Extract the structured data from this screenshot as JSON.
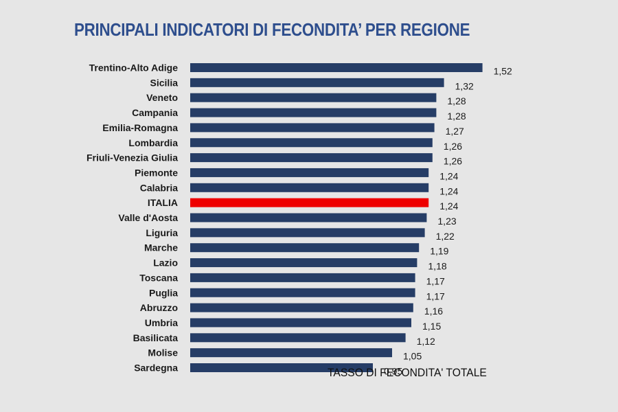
{
  "title": "PRINCIPALI INDICATORI DI FECONDITA’ PER REGIONE",
  "chart_data": {
    "type": "bar",
    "orientation": "horizontal",
    "title": "PRINCIPALI INDICATORI DI FECONDITA’ PER REGIONE",
    "xlabel": "TASSO DI FECONDITA' TOTALE",
    "ylabel": "",
    "xlim": [
      0,
      1.6
    ],
    "grid": false,
    "legend": "none",
    "categories": [
      "Trentino-Alto Adige",
      "Sicilia",
      "Veneto",
      "Campania",
      "Emilia-Romagna",
      "Lombardia",
      "Friuli-Venezia Giulia",
      "Piemonte",
      "Calabria",
      "ITALIA",
      "Valle d'Aosta",
      "Liguria",
      "Marche",
      "Lazio",
      "Toscana",
      "Puglia",
      "Abruzzo",
      "Umbria",
      "Basilicata",
      "Molise",
      "Sardegna"
    ],
    "values": [
      1.52,
      1.32,
      1.28,
      1.28,
      1.27,
      1.26,
      1.26,
      1.24,
      1.24,
      1.24,
      1.23,
      1.22,
      1.19,
      1.18,
      1.17,
      1.17,
      1.16,
      1.15,
      1.12,
      1.05,
      0.95
    ],
    "value_labels": [
      "1,52",
      "1,32",
      "1,28",
      "1,28",
      "1,27",
      "1,26",
      "1,26",
      "1,24",
      "1,24",
      "1,24",
      "1,23",
      "1,22",
      "1,19",
      "1,18",
      "1,17",
      "1,17",
      "1,16",
      "1,15",
      "1,12",
      "1,05",
      "0,95"
    ],
    "highlight_category": "ITALIA",
    "colors": {
      "bar": "#263d66",
      "highlight": "#ee0000",
      "background": "#e6e6e6",
      "title": "#2e4e8d"
    }
  }
}
